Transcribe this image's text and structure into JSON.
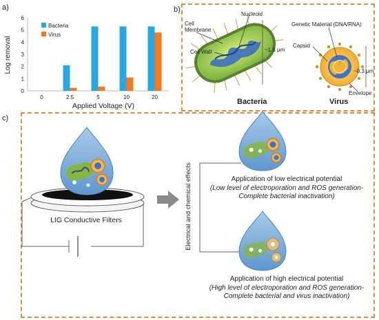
{
  "panel_a": {
    "letter": "a)",
    "legend": [
      "Bacteria",
      "Virus"
    ],
    "colors": {
      "bacteria": "#29a8df",
      "virus": "#f47a20"
    }
  },
  "chart_data": {
    "type": "bar",
    "categories": [
      "0",
      "2.5",
      "5",
      "10",
      "20"
    ],
    "series": [
      {
        "name": "Bacteria",
        "values": [
          0,
          2.1,
          5.3,
          5.3,
          5.3
        ]
      },
      {
        "name": "Virus",
        "values": [
          0,
          0.25,
          0.35,
          1.1,
          4.8
        ]
      }
    ],
    "xlabel": "Applied Voltage  (V)",
    "ylabel": "Log removal",
    "ylim": [
      0,
      6
    ],
    "yticks": [
      "0",
      "1",
      "2",
      "3",
      "4",
      "5",
      "6"
    ],
    "grid": false,
    "legend_position": "top-left"
  },
  "panel_b": {
    "letter": "b)",
    "labels": {
      "membrane": "Cell Membrane",
      "nucleoid": "Nucleoid",
      "wall": "Cell Wall",
      "size_bacteria": "~1.5 μm",
      "genetic": "Genetic Material (DNA/RNA)",
      "capsid": "Capsid",
      "size_virus": "~0.3 μm",
      "envelope": "Envelope",
      "bacteria_title": "Bacteria",
      "virus_title": "Virus"
    }
  },
  "panel_c": {
    "letter": "c)",
    "filter_label": "LIG Conductive Filters",
    "side_label": "Electrical and chemical effects",
    "low_title": "Application of low electrical potential",
    "low_detail": "(Low level of electroporation and ROS generation-Complete bacterial inactivation)",
    "high_title": "Application of high electrical potential",
    "high_detail": "(High level of electroporation and ROS generation-Complete bacterial and virus inactivation)"
  },
  "colors": {
    "accent_dash": "#e8893a",
    "drop_blue": "#6fa8d6",
    "arrow_gray": "#8a8a8a"
  }
}
